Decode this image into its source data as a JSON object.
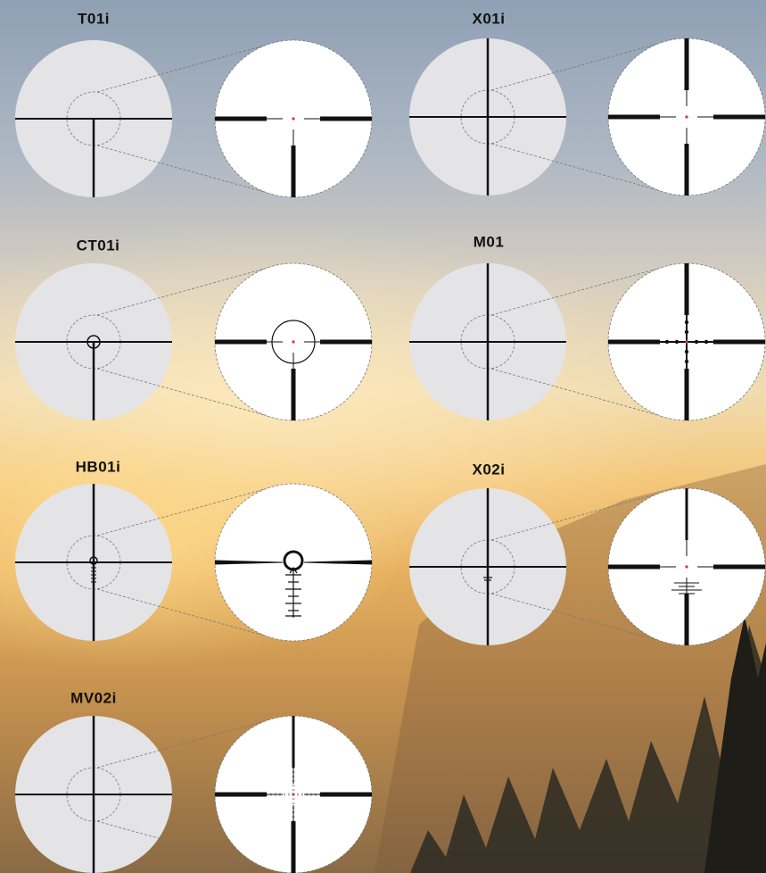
{
  "reticles": [
    {
      "name": "T01i"
    },
    {
      "name": "X01i"
    },
    {
      "name": "CT01i"
    },
    {
      "name": "M01"
    },
    {
      "name": "HB01i"
    },
    {
      "name": "X02i"
    },
    {
      "name": "MV02i"
    }
  ]
}
